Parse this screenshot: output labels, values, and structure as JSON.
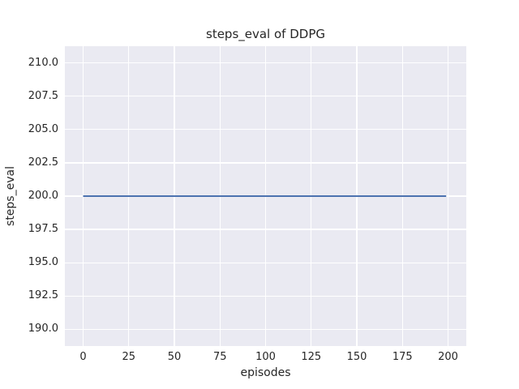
{
  "figure": {
    "title": "steps_eval of DDPG",
    "xlabel": "episodes",
    "ylabel": "steps_eval"
  },
  "chart_data": {
    "type": "line",
    "title": "steps_eval of DDPG",
    "xlabel": "episodes",
    "ylabel": "steps_eval",
    "xlim": [
      -10,
      210
    ],
    "ylim": [
      188.75,
      211.25
    ],
    "x_ticks": [
      0,
      25,
      50,
      75,
      100,
      125,
      150,
      175,
      200
    ],
    "x_tick_labels": [
      "0",
      "25",
      "50",
      "75",
      "100",
      "125",
      "150",
      "175",
      "200"
    ],
    "y_ticks": [
      190.0,
      192.5,
      195.0,
      197.5,
      200.0,
      202.5,
      205.0,
      207.5,
      210.0
    ],
    "y_tick_labels": [
      "190.0",
      "192.5",
      "195.0",
      "197.5",
      "200.0",
      "202.5",
      "205.0",
      "207.5",
      "210.0"
    ],
    "grid": true,
    "legend": false,
    "series": [
      {
        "name": "steps_eval",
        "x": [
          0,
          199
        ],
        "y": [
          200.0,
          200.0
        ],
        "color": "#4c72b0",
        "note": "constant value 200 for every evaluated episode from 0 to 199"
      }
    ],
    "colors": {
      "figure_background": "#ffffff",
      "axes_background": "#eaeaf2",
      "gridline": "#ffffff",
      "line": "#4c72b0",
      "text": "#262626"
    }
  }
}
